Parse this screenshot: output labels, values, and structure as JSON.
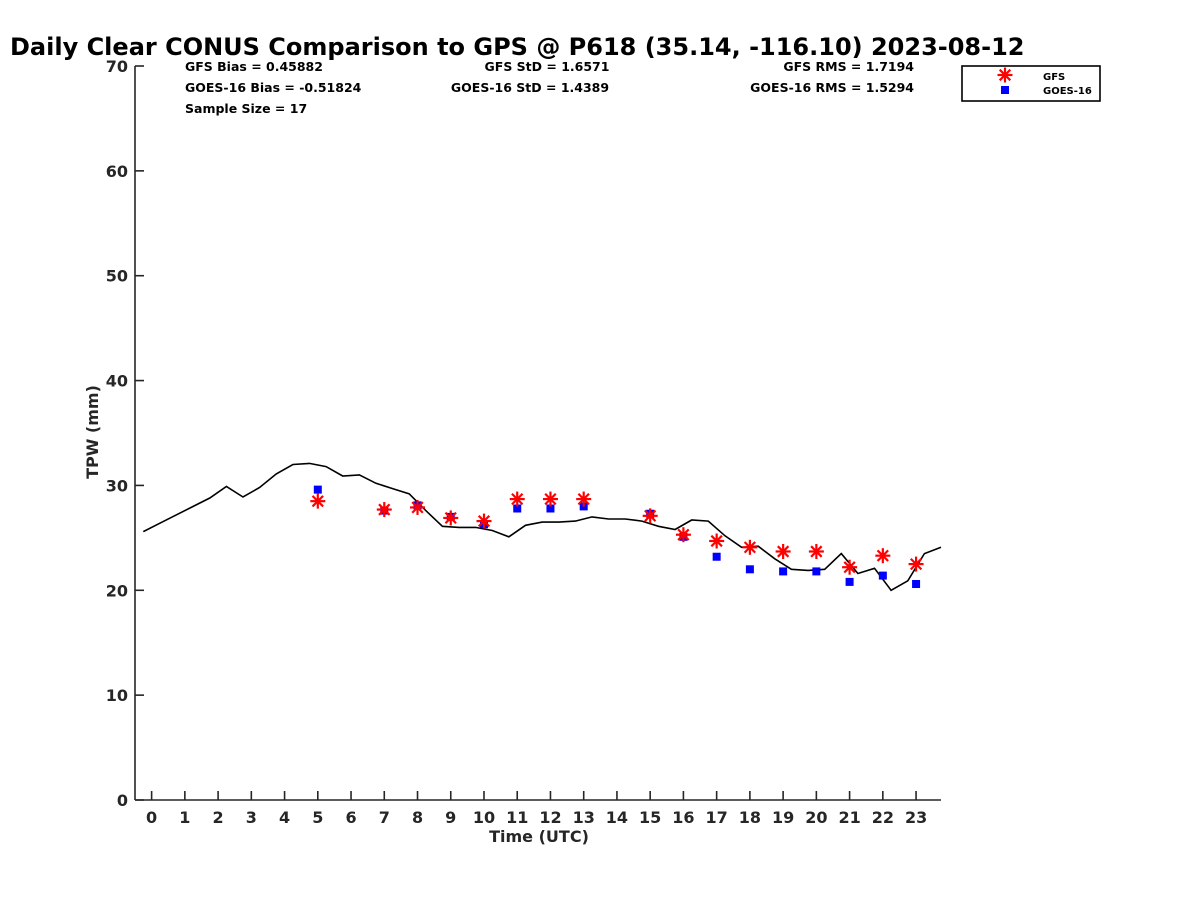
{
  "chart_data": {
    "type": "line",
    "title": "Daily Clear CONUS Comparison to GPS @ P618 (35.14, -116.10) 2023-08-12",
    "xlabel": "Time (UTC)",
    "ylabel": "TPW (mm)",
    "xlim": [
      -0.5,
      23.75
    ],
    "ylim": [
      0,
      70
    ],
    "xticks": [
      0,
      1,
      2,
      3,
      4,
      5,
      6,
      7,
      8,
      9,
      10,
      11,
      12,
      13,
      14,
      15,
      16,
      17,
      18,
      19,
      20,
      21,
      22,
      23
    ],
    "yticks": [
      0,
      10,
      20,
      30,
      40,
      50,
      60,
      70
    ],
    "grid": false,
    "legend": "top-right",
    "stats": {
      "gfs_bias": "GFS Bias = 0.45882",
      "goes_bias": "GOES-16 Bias = -0.51824",
      "sample_size": "Sample Size = 17",
      "gfs_std": "GFS StD = 1.6571",
      "goes_std": "GOES-16 StD = 1.4389",
      "gfs_rms": "GFS RMS = 1.7194",
      "goes_rms": "GOES-16 RMS = 1.5294"
    },
    "gps_line": {
      "color": "#000000",
      "x": [
        -0.25,
        0.25,
        0.75,
        1.25,
        1.75,
        2.25,
        2.75,
        3.25,
        3.75,
        4.25,
        4.75,
        5.25,
        5.75,
        6.25,
        6.75,
        7.25,
        7.75,
        8.25,
        8.75,
        9.25,
        9.75,
        10.25,
        10.75,
        11.25,
        11.75,
        12.25,
        12.75,
        13.25,
        13.75,
        14.25,
        14.75,
        15.25,
        15.75,
        16.25,
        16.75,
        17.25,
        17.75,
        18.25,
        18.75,
        19.25,
        19.75,
        20.25,
        20.75,
        21.25,
        21.75,
        22.25,
        22.75,
        23.25,
        23.75
      ],
      "y": [
        25.6,
        26.4,
        27.2,
        28.0,
        28.8,
        29.9,
        28.9,
        29.8,
        31.1,
        32.0,
        32.1,
        31.8,
        30.9,
        31.0,
        30.2,
        29.7,
        29.2,
        27.6,
        26.1,
        26.0,
        26.0,
        25.7,
        25.1,
        26.2,
        26.5,
        26.5,
        26.6,
        27.0,
        26.8,
        26.8,
        26.6,
        26.1,
        25.8,
        26.7,
        26.6,
        25.2,
        24.1,
        24.2,
        23.0,
        22.0,
        21.9,
        22.0,
        23.5,
        21.6,
        22.1,
        20.0,
        20.9,
        23.5,
        24.1
      ]
    },
    "series": [
      {
        "name": "GFS",
        "marker": "asterisk",
        "color": "#ff0000",
        "x": [
          5,
          7,
          8,
          9,
          10,
          11,
          12,
          13,
          15,
          16,
          17,
          18,
          19,
          20,
          21,
          22,
          23
        ],
        "values": [
          28.5,
          27.7,
          27.9,
          26.9,
          26.6,
          28.7,
          28.7,
          28.7,
          27.1,
          25.3,
          24.7,
          24.1,
          23.7,
          23.7,
          22.2,
          23.3,
          22.5
        ]
      },
      {
        "name": "GOES-16",
        "marker": "square",
        "color": "#0000ff",
        "x": [
          5,
          7,
          8,
          9,
          10,
          11,
          12,
          13,
          15,
          16,
          17,
          18,
          19,
          20,
          21,
          22,
          23
        ],
        "values": [
          29.6,
          27.6,
          28.1,
          27.0,
          26.3,
          27.8,
          27.8,
          28.0,
          27.3,
          25.1,
          23.2,
          22.0,
          21.8,
          21.8,
          20.8,
          21.4,
          20.6
        ]
      }
    ]
  }
}
